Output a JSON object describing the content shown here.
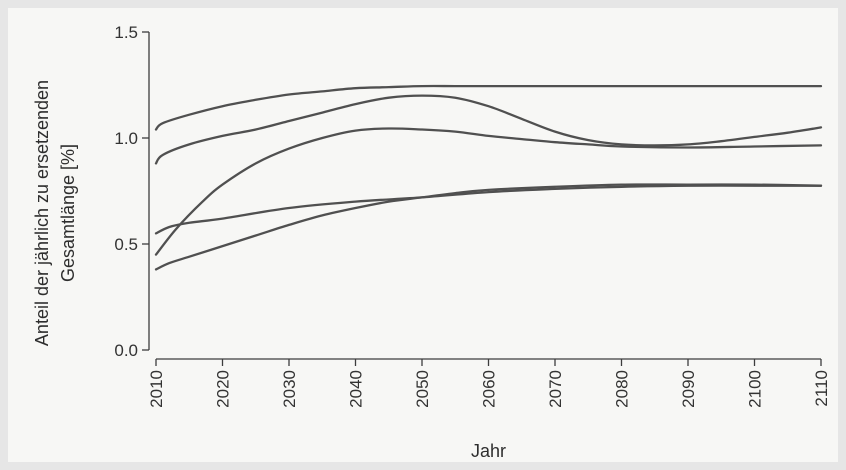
{
  "chart_data": {
    "type": "line",
    "title": "",
    "xlabel": "Jahr",
    "ylabel": [
      "Anteil der jährlich zu ersetzenden",
      "Gesamtlänge [%]"
    ],
    "xlim": [
      2010,
      2110
    ],
    "ylim": [
      0,
      1.5
    ],
    "x_ticks": [
      2010,
      2020,
      2030,
      2040,
      2050,
      2060,
      2070,
      2080,
      2090,
      2100,
      2110
    ],
    "y_ticks": [
      0.0,
      0.5,
      1.0,
      1.5
    ],
    "y_tick_labels": [
      "0.0",
      "0.5",
      "1.0",
      "1.5"
    ],
    "grid": false,
    "legend": "none",
    "line_color": "#505050",
    "series": [
      {
        "x": [
          2010,
          2011,
          2015,
          2020,
          2025,
          2030,
          2035,
          2040,
          2045,
          2050,
          2055,
          2060,
          2070,
          2080,
          2090,
          2100,
          2110
        ],
        "values": [
          1.04,
          1.07,
          1.11,
          1.15,
          1.18,
          1.205,
          1.22,
          1.235,
          1.24,
          1.245,
          1.245,
          1.245,
          1.245,
          1.245,
          1.245,
          1.245,
          1.245
        ]
      },
      {
        "x": [
          2010,
          2011,
          2015,
          2020,
          2025,
          2030,
          2035,
          2040,
          2045,
          2050,
          2055,
          2060,
          2065,
          2070,
          2075,
          2080,
          2085,
          2090,
          2095,
          2100,
          2105,
          2110
        ],
        "values": [
          0.88,
          0.92,
          0.97,
          1.01,
          1.04,
          1.08,
          1.12,
          1.16,
          1.19,
          1.2,
          1.19,
          1.15,
          1.09,
          1.03,
          0.99,
          0.97,
          0.965,
          0.97,
          0.985,
          1.005,
          1.025,
          1.05
        ]
      },
      {
        "x": [
          2010,
          2013,
          2017,
          2020,
          2025,
          2030,
          2035,
          2040,
          2045,
          2050,
          2055,
          2060,
          2065,
          2070,
          2075,
          2080,
          2090,
          2100,
          2110
        ],
        "values": [
          0.45,
          0.57,
          0.7,
          0.78,
          0.88,
          0.95,
          1.0,
          1.035,
          1.045,
          1.04,
          1.03,
          1.01,
          0.995,
          0.98,
          0.97,
          0.96,
          0.955,
          0.96,
          0.965
        ]
      },
      {
        "x": [
          2010,
          2012,
          2015,
          2020,
          2030,
          2040,
          2050,
          2060,
          2070,
          2080,
          2090,
          2100,
          2110
        ],
        "values": [
          0.55,
          0.58,
          0.6,
          0.62,
          0.67,
          0.7,
          0.72,
          0.745,
          0.76,
          0.77,
          0.775,
          0.775,
          0.775
        ]
      },
      {
        "x": [
          2010,
          2012,
          2015,
          2020,
          2025,
          2030,
          2035,
          2040,
          2045,
          2050,
          2055,
          2060,
          2070,
          2080,
          2090,
          2100,
          2110
        ],
        "values": [
          0.38,
          0.41,
          0.44,
          0.49,
          0.54,
          0.59,
          0.635,
          0.67,
          0.7,
          0.72,
          0.74,
          0.755,
          0.77,
          0.78,
          0.78,
          0.78,
          0.775
        ]
      }
    ]
  }
}
